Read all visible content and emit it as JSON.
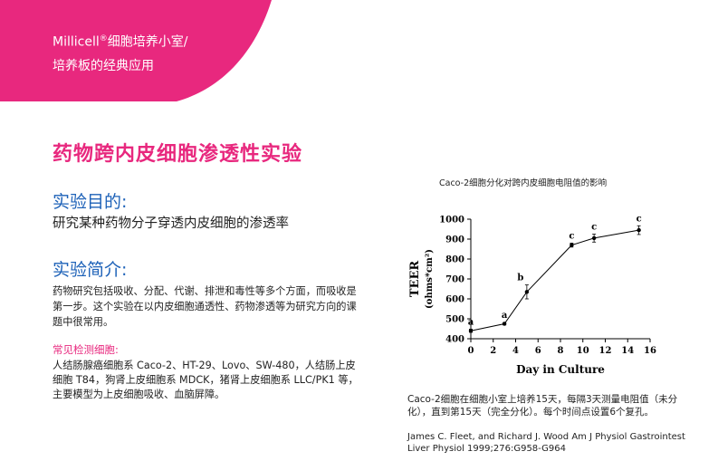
{
  "header": {
    "brand": "Millicell",
    "reg": "®",
    "line1_rest": "细胞培养小室/",
    "line2": "培养板的经典应用"
  },
  "title": "药物跨内皮细胞渗透性实验",
  "purpose": {
    "heading": "实验目的:",
    "text": "研究某种药物分子穿透内皮细胞的渗透率"
  },
  "intro": {
    "heading": "实验简介:",
    "text": "药物研究包括吸收、分配、代谢、排泄和毒性等多个方面，而吸收是第一步。这个实验在以内皮细胞通透性、药物渗透等为研究方向的课题中很常用。"
  },
  "cells": {
    "heading": "常见检测细胞:",
    "text": "人结肠腺癌细胞系 Caco-2、HT-29、Lovo、SW-480，人结肠上皮细胞 T84，狗肾上皮细胞系 MDCK，猪肾上皮细胞系 LLC/PK1 等，主要模型为上皮细胞吸收、血脑屏障。"
  },
  "figure": {
    "title": "Caco-2细胞分化对跨内皮细胞电阻值的影响",
    "caption": "Caco-2细胞在细胞小室上培养15天，每隔3天测量电阻值（未分化），直到第15天（完全分化）。每个时间点设置6个复孔。",
    "reference": "James C. Fleet, and Richard J. Wood Am J Physiol Gastrointest Liver Physiol 1999;276:G958-G964"
  },
  "colors": {
    "accent": "#e8287e",
    "heading_blue": "#1e62b8"
  },
  "chart_data": {
    "type": "line",
    "xlabel": "Day in Culture",
    "ylabel_main": "TEER",
    "ylabel_unit": "(ohms*cm²)",
    "xlim": [
      0,
      16
    ],
    "ylim": [
      400,
      1000
    ],
    "xticks": [
      0,
      2,
      4,
      6,
      8,
      10,
      12,
      14,
      16
    ],
    "yticks": [
      400,
      500,
      600,
      700,
      800,
      900,
      1000
    ],
    "points": [
      {
        "x": 0,
        "y": 440,
        "err": 8,
        "label": "a"
      },
      {
        "x": 3,
        "y": 475,
        "err": 6,
        "label": "a"
      },
      {
        "x": 5,
        "y": 635,
        "err": 35,
        "label": "b"
      },
      {
        "x": 9,
        "y": 870,
        "err": 10,
        "label": "c"
      },
      {
        "x": 11,
        "y": 905,
        "err": 20,
        "label": "c"
      },
      {
        "x": 15,
        "y": 945,
        "err": 22,
        "label": "c"
      }
    ]
  }
}
